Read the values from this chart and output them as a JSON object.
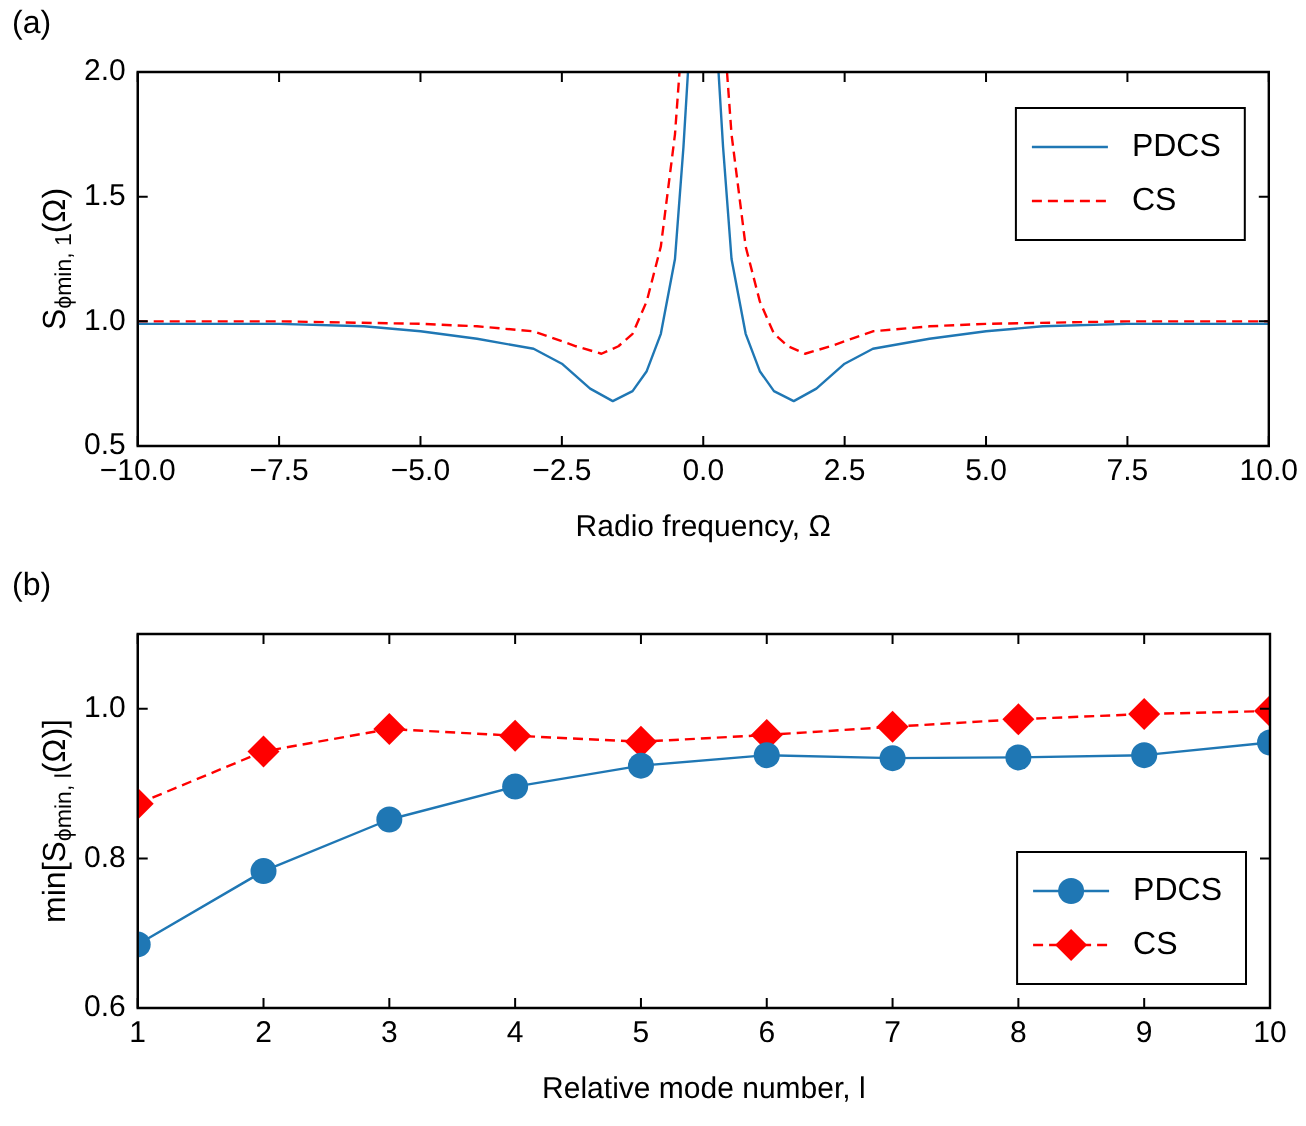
{
  "chart_data": [
    {
      "type": "line",
      "title": "(a)",
      "xlabel": "Radio frequency, Ω",
      "ylabel": "S$_{ϕmin, 1}$(Ω)",
      "xlim": [
        -10,
        10
      ],
      "ylim": [
        0.5,
        2.0
      ],
      "xticks": [
        {
          "value": -10,
          "label": "−10.0"
        },
        {
          "value": -7.5,
          "label": "−7.5"
        },
        {
          "value": -5,
          "label": "−5.0"
        },
        {
          "value": -2.5,
          "label": "−2.5"
        },
        {
          "value": 0,
          "label": "0.0"
        },
        {
          "value": 2.5,
          "label": "2.5"
        },
        {
          "value": 5,
          "label": "5.0"
        },
        {
          "value": 7.5,
          "label": "7.5"
        },
        {
          "value": 10,
          "label": "10.0"
        }
      ],
      "yticks": [
        {
          "value": 0.5,
          "label": "0.5"
        },
        {
          "value": 1,
          "label": "1.0"
        },
        {
          "value": 1.5,
          "label": "1.5"
        },
        {
          "value": 2,
          "label": "2.0"
        }
      ],
      "grid": false,
      "legend": "top right",
      "marker": "none",
      "series": [
        {
          "name": "PDCS",
          "color": "#1f77b4",
          "line_style": "solid",
          "x": [
            -10,
            -7.5,
            -6,
            -5,
            -4,
            -3,
            -2.5,
            -2,
            -1.6,
            -1.25,
            -1,
            -0.75,
            -0.5,
            -0.35,
            -0.27,
            0,
            0.27,
            0.35,
            0.5,
            0.75,
            1,
            1.25,
            1.6,
            2,
            2.5,
            3,
            4,
            5,
            6,
            7.5,
            10
          ],
          "values": [
            0.99,
            0.99,
            0.98,
            0.96,
            0.93,
            0.89,
            0.83,
            0.73,
            0.68,
            0.72,
            0.8,
            0.95,
            1.25,
            1.7,
            2.0,
            null,
            2.0,
            1.7,
            1.25,
            0.95,
            0.8,
            0.72,
            0.68,
            0.73,
            0.83,
            0.89,
            0.93,
            0.96,
            0.98,
            0.99,
            0.99
          ]
        },
        {
          "name": "CS",
          "color": "#ff0000",
          "line_style": "dashed",
          "x": [
            -10,
            -7.5,
            -5,
            -4,
            -3,
            -2.25,
            -1.8,
            -1.5,
            -1.25,
            -1,
            -0.75,
            -0.5,
            -0.42,
            0,
            0.42,
            0.5,
            0.75,
            1,
            1.25,
            1.5,
            1.8,
            2.25,
            3,
            4,
            5,
            7.5,
            10
          ],
          "values": [
            1.0,
            1.0,
            0.99,
            0.98,
            0.96,
            0.9,
            0.87,
            0.9,
            0.95,
            1.08,
            1.3,
            1.75,
            2.0,
            null,
            2.0,
            1.75,
            1.3,
            1.08,
            0.95,
            0.9,
            0.87,
            0.9,
            0.96,
            0.98,
            0.99,
            1.0,
            1.0
          ]
        }
      ]
    },
    {
      "type": "line",
      "title": "(b)",
      "xlabel": "Relative mode number, l",
      "ylabel": "min[S$_{ϕmin, l}$(Ω)]",
      "xlim": [
        1,
        10
      ],
      "ylim": [
        0.6,
        1.1
      ],
      "xticks": [
        1,
        2,
        3,
        4,
        5,
        6,
        7,
        8,
        9,
        10
      ],
      "yticks": [
        {
          "value": 0.6,
          "label": "0.6"
        },
        {
          "value": 0.8,
          "label": "0.8"
        },
        {
          "value": 1,
          "label": "1.0"
        }
      ],
      "grid": false,
      "legend": "bottom right",
      "x": [
        1,
        2,
        3,
        4,
        5,
        6,
        7,
        8,
        9,
        10
      ],
      "series": [
        {
          "name": "PDCS",
          "color": "#1f77b4",
          "line_style": "solid",
          "marker": "circle",
          "values": [
            0.685,
            0.783,
            0.852,
            0.896,
            0.924,
            0.938,
            0.934,
            0.935,
            0.938,
            0.955
          ]
        },
        {
          "name": "CS",
          "color": "#ff0000",
          "line_style": "dashed",
          "marker": "diamond",
          "values": [
            0.873,
            0.943,
            0.973,
            0.964,
            0.956,
            0.965,
            0.976,
            0.986,
            0.993,
            0.997
          ]
        }
      ]
    }
  ]
}
